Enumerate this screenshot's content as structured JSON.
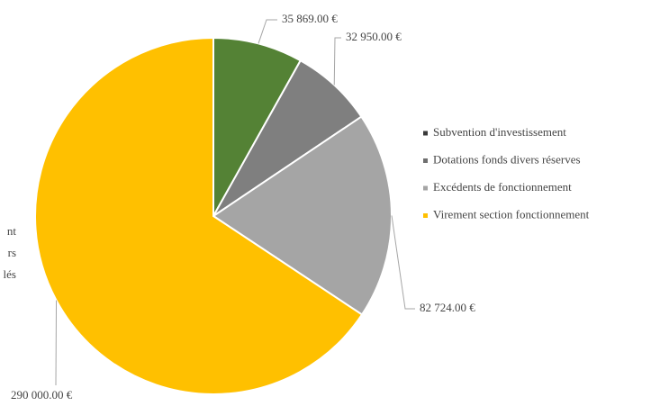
{
  "chart_data": {
    "type": "pie",
    "categories": [
      "Subvention d'investissement",
      "Dotations fonds divers réserves",
      "Excédents de fonctionnement",
      "Virement section fonctionnement"
    ],
    "values": [
      35869,
      32950,
      82724,
      290000
    ],
    "value_labels": [
      "35 869.00 €",
      "32 950.00 €",
      "82 724.00 €",
      "290 000.00 €"
    ],
    "colors": [
      "#548235",
      "#7f7f7f",
      "#a5a5a5",
      "#ffc000"
    ],
    "legend_colors": [
      "#3a3a3a",
      "#6f6f6f",
      "#a5a5a5",
      "#ffc000"
    ],
    "legend": "right",
    "annotation_lines": [
      "nt",
      "rs",
      "lés"
    ]
  }
}
